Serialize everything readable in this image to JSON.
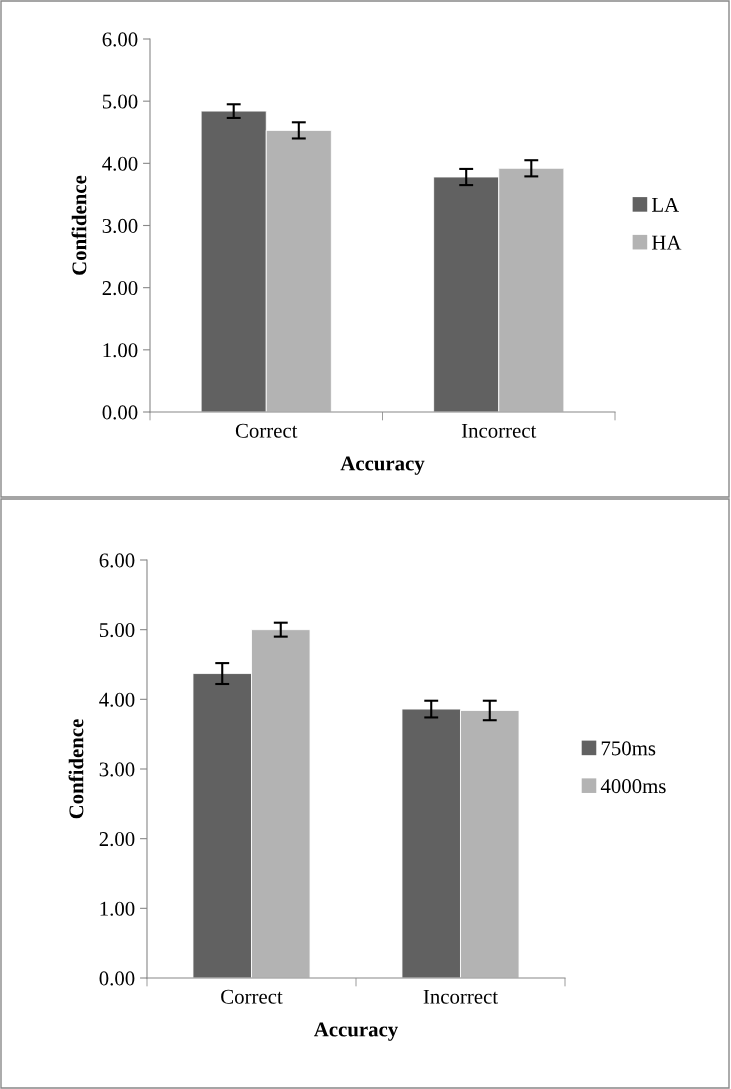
{
  "chart_data": [
    {
      "type": "bar",
      "xlabel": "Accuracy",
      "ylabel": "Confidence",
      "categories": [
        "Correct",
        "Incorrect"
      ],
      "ylim": [
        0,
        6
      ],
      "yticks": [
        {
          "value": 0,
          "label": "0.00"
        },
        {
          "value": 1,
          "label": "1.00"
        },
        {
          "value": 2,
          "label": "2.00"
        },
        {
          "value": 3,
          "label": "3.00"
        },
        {
          "value": 4,
          "label": "4.00"
        },
        {
          "value": 5,
          "label": "5.00"
        },
        {
          "value": 6,
          "label": "6.00"
        }
      ],
      "legend": "right",
      "grid": false,
      "series": [
        {
          "name": "LA",
          "color": "#616161",
          "values": [
            4.84,
            3.78
          ],
          "errors": [
            0.11,
            0.13
          ]
        },
        {
          "name": "HA",
          "color": "#b3b3b3",
          "values": [
            4.53,
            3.92
          ],
          "errors": [
            0.13,
            0.13
          ]
        }
      ]
    },
    {
      "type": "bar",
      "xlabel": "Accuracy",
      "ylabel": "Confidence",
      "categories": [
        "Correct",
        "Incorrect"
      ],
      "ylim": [
        0,
        6
      ],
      "yticks": [
        {
          "value": 0,
          "label": "0.00"
        },
        {
          "value": 1,
          "label": "1.00"
        },
        {
          "value": 2,
          "label": "2.00"
        },
        {
          "value": 3,
          "label": "3.00"
        },
        {
          "value": 4,
          "label": "4.00"
        },
        {
          "value": 5,
          "label": "5.00"
        },
        {
          "value": 6,
          "label": "6.00"
        }
      ],
      "legend": "right",
      "grid": false,
      "series": [
        {
          "name": "750ms",
          "color": "#616161",
          "values": [
            4.37,
            3.86
          ],
          "errors": [
            0.15,
            0.12
          ]
        },
        {
          "name": "4000ms",
          "color": "#b3b3b3",
          "values": [
            5.0,
            3.84
          ],
          "errors": [
            0.1,
            0.14
          ]
        }
      ]
    }
  ]
}
